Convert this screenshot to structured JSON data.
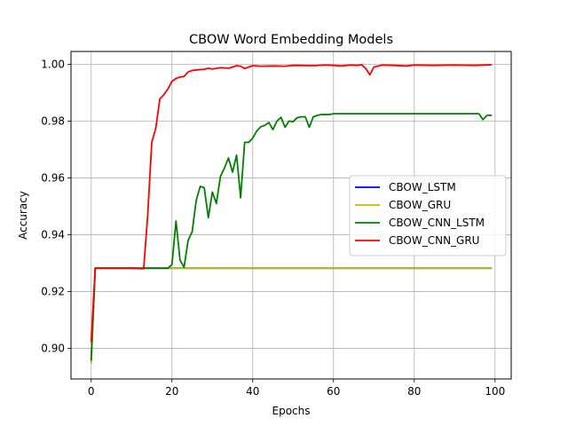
{
  "chart_data": {
    "type": "line",
    "title": "CBOW Word Embedding Models",
    "xlabel": "Epochs",
    "ylabel": "Accuracy",
    "xlim": [
      -5,
      104
    ],
    "ylim": [
      0.8892,
      1.0045
    ],
    "x_ticks": [
      0,
      20,
      40,
      60,
      80,
      100
    ],
    "y_ticks": [
      0.9,
      0.92,
      0.94,
      0.96,
      0.98,
      1.0
    ],
    "x_tick_labels": [
      "0",
      "20",
      "40",
      "60",
      "80",
      "100"
    ],
    "y_tick_labels": [
      "0.90",
      "0.92",
      "0.94",
      "0.96",
      "0.98",
      "1.00"
    ],
    "grid": true,
    "legend_position": "center-right",
    "series": [
      {
        "name": "CBOW_LSTM",
        "color": "#0000ff",
        "points": [
          [
            0,
            0.8955
          ],
          [
            1,
            0.9282
          ],
          [
            99,
            0.9282
          ]
        ]
      },
      {
        "name": "CBOW_GRU",
        "color": "#bfbf00",
        "points": [
          [
            0,
            0.8948
          ],
          [
            1,
            0.9282
          ],
          [
            99,
            0.9282
          ]
        ]
      },
      {
        "name": "CBOW_CNN_LSTM",
        "color": "#008000",
        "points": [
          [
            0,
            0.896
          ],
          [
            1,
            0.9282
          ],
          [
            2,
            0.9282
          ],
          [
            5,
            0.9282
          ],
          [
            10,
            0.9282
          ],
          [
            15,
            0.9282
          ],
          [
            18,
            0.9282
          ],
          [
            19,
            0.9282
          ],
          [
            20,
            0.9295
          ],
          [
            21,
            0.9448
          ],
          [
            22,
            0.931
          ],
          [
            23,
            0.9285
          ],
          [
            24,
            0.938
          ],
          [
            25,
            0.941
          ],
          [
            26,
            0.952
          ],
          [
            27,
            0.957
          ],
          [
            28,
            0.9565
          ],
          [
            29,
            0.946
          ],
          [
            30,
            0.955
          ],
          [
            31,
            0.951
          ],
          [
            32,
            0.9605
          ],
          [
            33,
            0.9635
          ],
          [
            34,
            0.967
          ],
          [
            35,
            0.962
          ],
          [
            36,
            0.968
          ],
          [
            37,
            0.953
          ],
          [
            38,
            0.9725
          ],
          [
            39,
            0.9725
          ],
          [
            40,
            0.974
          ],
          [
            41,
            0.9765
          ],
          [
            42,
            0.978
          ],
          [
            43,
            0.9785
          ],
          [
            44,
            0.9795
          ],
          [
            45,
            0.977
          ],
          [
            46,
            0.98
          ],
          [
            47,
            0.9813
          ],
          [
            48,
            0.9778
          ],
          [
            49,
            0.98
          ],
          [
            50,
            0.9798
          ],
          [
            51,
            0.9812
          ],
          [
            52,
            0.9815
          ],
          [
            53,
            0.9815
          ],
          [
            54,
            0.9778
          ],
          [
            55,
            0.9815
          ],
          [
            56,
            0.982
          ],
          [
            57,
            0.9823
          ],
          [
            58,
            0.9823
          ],
          [
            59,
            0.9823
          ],
          [
            60,
            0.9826
          ],
          [
            65,
            0.9826
          ],
          [
            70,
            0.9826
          ],
          [
            80,
            0.9826
          ],
          [
            90,
            0.9826
          ],
          [
            96,
            0.9826
          ],
          [
            97,
            0.9805
          ],
          [
            98,
            0.982
          ],
          [
            99,
            0.982
          ]
        ]
      },
      {
        "name": "CBOW_CNN_GRU",
        "color": "#ff0000",
        "points": [
          [
            0,
            0.9025
          ],
          [
            1,
            0.9282
          ],
          [
            5,
            0.9282
          ],
          [
            10,
            0.9282
          ],
          [
            13,
            0.928
          ],
          [
            14,
            0.947
          ],
          [
            15,
            0.9725
          ],
          [
            16,
            0.9775
          ],
          [
            17,
            0.9878
          ],
          [
            18,
            0.9893
          ],
          [
            19,
            0.9913
          ],
          [
            20,
            0.994
          ],
          [
            21,
            0.995
          ],
          [
            22,
            0.9955
          ],
          [
            23,
            0.9957
          ],
          [
            24,
            0.9973
          ],
          [
            25,
            0.9978
          ],
          [
            26,
            0.998
          ],
          [
            28,
            0.9982
          ],
          [
            29,
            0.9986
          ],
          [
            30,
            0.9983
          ],
          [
            32,
            0.9988
          ],
          [
            33,
            0.9987
          ],
          [
            34,
            0.9986
          ],
          [
            35,
            0.999
          ],
          [
            36,
            0.9995
          ],
          [
            37,
            0.9993
          ],
          [
            38,
            0.9985
          ],
          [
            39,
            0.999
          ],
          [
            40,
            0.9995
          ],
          [
            42,
            0.9993
          ],
          [
            45,
            0.9994
          ],
          [
            48,
            0.9993
          ],
          [
            50,
            0.9996
          ],
          [
            55,
            0.9995
          ],
          [
            58,
            0.9997
          ],
          [
            60,
            0.9996
          ],
          [
            62,
            0.9994
          ],
          [
            64,
            0.9997
          ],
          [
            66,
            0.9996
          ],
          [
            67,
            0.9998
          ],
          [
            68,
            0.9985
          ],
          [
            69,
            0.9963
          ],
          [
            70,
            0.999
          ],
          [
            72,
            0.9997
          ],
          [
            75,
            0.9996
          ],
          [
            78,
            0.9994
          ],
          [
            80,
            0.9997
          ],
          [
            85,
            0.9996
          ],
          [
            90,
            0.9997
          ],
          [
            95,
            0.9996
          ],
          [
            99,
            0.9998
          ]
        ]
      }
    ]
  }
}
